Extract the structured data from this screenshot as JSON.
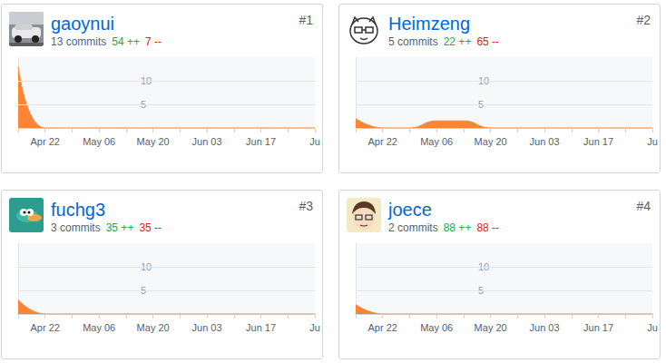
{
  "chart_data": [
    {
      "type": "area",
      "title": "gaoynui",
      "rank": "#1",
      "commits": "13 commits",
      "additions": "54 ++",
      "deletions": "7 --",
      "categories": [
        null,
        "Apr 22",
        null,
        "May 06",
        null,
        "May 20",
        null,
        "Jun 03",
        null,
        "Jun 17",
        null,
        "Ju"
      ],
      "values": [
        13,
        0,
        0,
        0,
        0,
        0,
        0,
        0,
        0,
        0,
        0,
        0
      ],
      "color": "#fb8532",
      "ylim": [
        0,
        15
      ],
      "yticks": [
        5,
        10
      ],
      "grid": true
    },
    {
      "type": "area",
      "title": "Heimzeng",
      "rank": "#2",
      "commits": "5 commits",
      "additions": "22 ++",
      "deletions": "65 --",
      "categories": [
        null,
        "Apr 22",
        null,
        "May 06",
        null,
        "May 20",
        null,
        "Jun 03",
        null,
        "Jun 17",
        null,
        "Ju"
      ],
      "values": [
        2,
        0,
        0,
        1.5,
        1.5,
        0,
        0,
        0,
        0,
        0,
        0,
        0
      ],
      "color": "#fb8532",
      "ylim": [
        0,
        15
      ],
      "yticks": [
        5,
        10
      ],
      "grid": true
    },
    {
      "type": "area",
      "title": "fuchg3",
      "rank": "#3",
      "commits": "3 commits",
      "additions": "35 ++",
      "deletions": "35 --",
      "categories": [
        null,
        "Apr 22",
        null,
        "May 06",
        null,
        "May 20",
        null,
        "Jun 03",
        null,
        "Jun 17",
        null,
        "Ju"
      ],
      "values": [
        3,
        0,
        0,
        0,
        0,
        0,
        0,
        0,
        0,
        0,
        0,
        0
      ],
      "color": "#fb8532",
      "ylim": [
        0,
        15
      ],
      "yticks": [
        5,
        10
      ],
      "grid": true
    },
    {
      "type": "area",
      "title": "joece",
      "rank": "#4",
      "commits": "2 commits",
      "additions": "88 ++",
      "deletions": "88 --",
      "categories": [
        null,
        "Apr 22",
        null,
        "May 06",
        null,
        "May 20",
        null,
        "Jun 03",
        null,
        "Jun 17",
        null,
        "Ju"
      ],
      "values": [
        2,
        0,
        0,
        0,
        0,
        0,
        0,
        0,
        0,
        0,
        0,
        0
      ],
      "color": "#fb8532",
      "ylim": [
        0,
        15
      ],
      "yticks": [
        5,
        10
      ],
      "grid": true
    }
  ]
}
